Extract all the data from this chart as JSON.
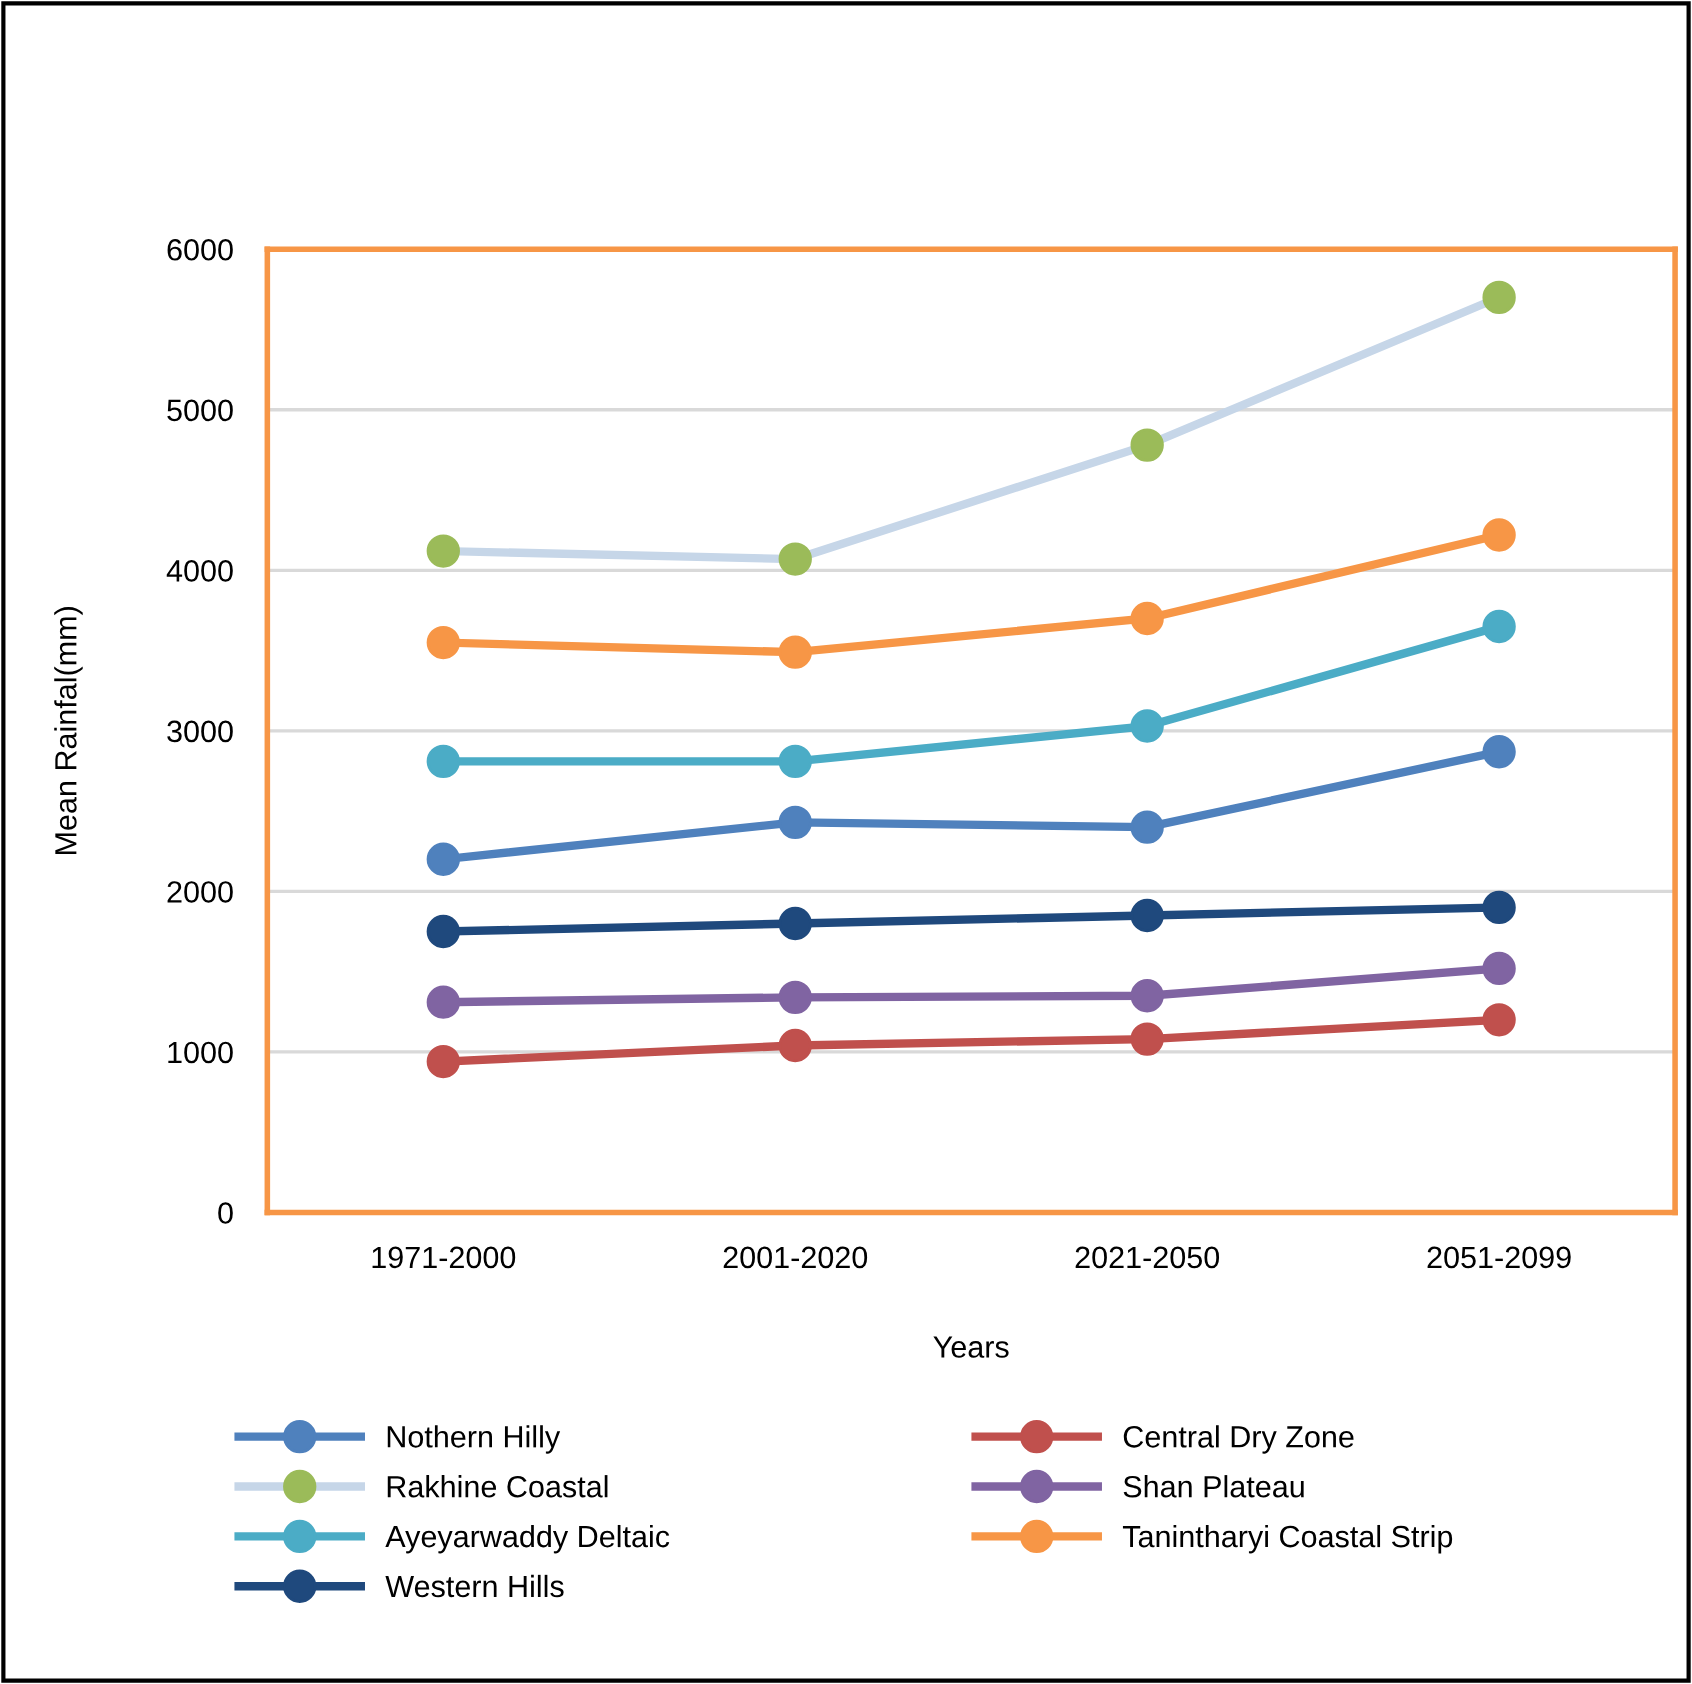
{
  "chart_data": {
    "type": "line",
    "xlabel": "Years",
    "ylabel": "Mean Rainfal(mm)",
    "categories": [
      "1971-2000",
      "2001-2020",
      "2021-2050",
      "2051-2099"
    ],
    "series": [
      {
        "name": "Nothern Hilly",
        "color": "#4f81bd",
        "values": [
          2200,
          2430,
          2400,
          2870
        ]
      },
      {
        "name": "Central Dry Zone",
        "color": "#c0504d",
        "values": [
          940,
          1040,
          1080,
          1200
        ]
      },
      {
        "name": "Rakhine Coastal",
        "color": "#c6d6e8",
        "colors": [
          "#9bbb59",
          "#9bbb59",
          "#9bbb59",
          "#9bbb59"
        ],
        "values": [
          4120,
          4070,
          4780,
          5700
        ]
      },
      {
        "name": "Shan Plateau",
        "color": "#8064a2",
        "values": [
          1310,
          1340,
          1350,
          1520
        ]
      },
      {
        "name": "Ayeyarwaddy Deltaic",
        "color": "#4bacc6",
        "values": [
          2810,
          2810,
          3030,
          3650
        ]
      },
      {
        "name": "Tanintharyi Coastal Strip",
        "color": "#f79646",
        "values": [
          3550,
          3490,
          3700,
          4220
        ]
      },
      {
        "name": "Western Hills",
        "color": "#1f497d",
        "values": [
          1750,
          1800,
          1850,
          1900
        ]
      }
    ],
    "ylim": [
      0,
      6000
    ],
    "yticks": [
      0,
      1000,
      2000,
      3000,
      4000,
      5000,
      6000
    ],
    "grid": "y",
    "legend": "bottom",
    "marker": "circle",
    "line_style": "solid"
  }
}
